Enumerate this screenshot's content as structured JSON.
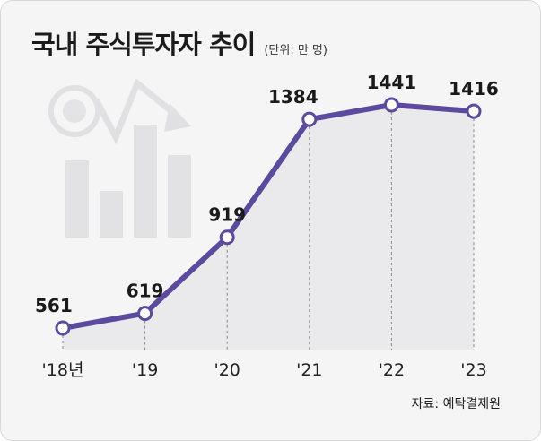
{
  "title": "국내 주식투자자 추이",
  "unit": "(단위: 만 명)",
  "source": "자료: 예탁결제원",
  "chart_data": {
    "type": "line",
    "categories": [
      "'18년",
      "'19",
      "'20",
      "'21",
      "'22",
      "'23"
    ],
    "series": [
      {
        "values": [
          561,
          619,
          919,
          1384,
          1441,
          1416
        ]
      }
    ],
    "line_color": "#5b4a9e",
    "marker_fill": "#ffffff",
    "area_fill": "#e9e9eb"
  }
}
